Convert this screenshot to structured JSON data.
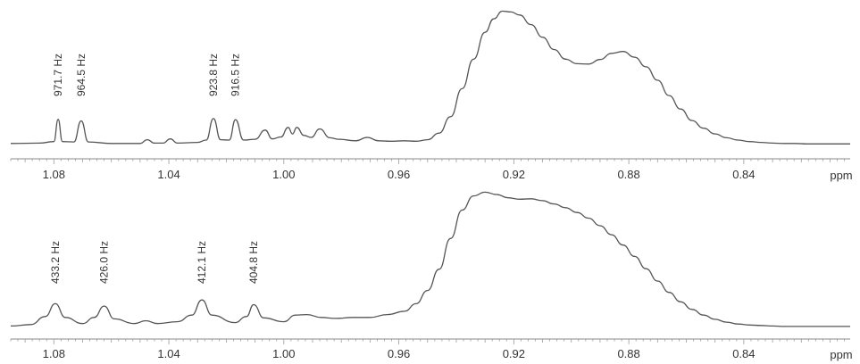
{
  "chart_data": [
    {
      "type": "line",
      "name": "upper-spectrum",
      "xlabel": "ppm",
      "xlim": [
        1.095,
        0.803
      ],
      "ticks": [
        "1.08",
        "1.04",
        "1.00",
        "0.96",
        "0.92",
        "0.88",
        "0.84"
      ],
      "tick_values": [
        1.08,
        1.04,
        1.0,
        0.96,
        0.92,
        0.88,
        0.84
      ],
      "grid": false,
      "peak_labels": [
        {
          "text": "971.7 Hz",
          "x": 1.0785
        },
        {
          "text": "964.5 Hz",
          "x": 1.0705
        },
        {
          "text": "923.8 Hz",
          "x": 1.0245
        },
        {
          "text": "916.5 Hz",
          "x": 1.0168
        }
      ],
      "x": [
        1.095,
        1.085,
        1.08,
        1.0785,
        1.077,
        1.073,
        1.0705,
        1.068,
        1.06,
        1.05,
        1.0475,
        1.045,
        1.042,
        1.0395,
        1.037,
        1.03,
        1.027,
        1.0245,
        1.022,
        1.019,
        1.0168,
        1.014,
        1.01,
        1.0065,
        1.004,
        1.001,
        0.9985,
        0.997,
        0.9955,
        0.993,
        0.9905,
        0.9875,
        0.984,
        0.981,
        0.975,
        0.971,
        0.967,
        0.963,
        0.958,
        0.954,
        0.95,
        0.946,
        0.942,
        0.938,
        0.934,
        0.93,
        0.927,
        0.924,
        0.921,
        0.918,
        0.914,
        0.91,
        0.906,
        0.902,
        0.898,
        0.894,
        0.89,
        0.886,
        0.882,
        0.878,
        0.874,
        0.87,
        0.866,
        0.862,
        0.858,
        0.854,
        0.85,
        0.846,
        0.842,
        0.838,
        0.834,
        0.83,
        0.826,
        0.822,
        0.818,
        0.814,
        0.81,
        0.806,
        0.803
      ],
      "y": [
        0.5,
        0.6,
        1.0,
        6.8,
        1.0,
        0.9,
        6.4,
        0.9,
        0.5,
        0.5,
        1.5,
        0.6,
        0.6,
        1.7,
        0.6,
        0.8,
        1.4,
        7.0,
        1.5,
        1.4,
        6.7,
        1.4,
        1.6,
        4.0,
        1.7,
        2.2,
        4.7,
        3.0,
        4.7,
        2.6,
        2.1,
        4.3,
        2.0,
        1.6,
        1.2,
        2.1,
        1.2,
        1.1,
        1.2,
        1.1,
        1.5,
        3.2,
        7.5,
        14.8,
        22.5,
        29.5,
        33.0,
        35.0,
        34.8,
        34.0,
        31.5,
        28.2,
        25.0,
        22.5,
        21.3,
        21.2,
        22.4,
        24.0,
        24.5,
        23.0,
        20.5,
        17.0,
        13.0,
        9.5,
        6.5,
        4.5,
        3.0,
        2.0,
        1.4,
        1.0,
        0.8,
        0.6,
        0.5,
        0.5,
        0.4,
        0.4,
        0.4,
        0.4,
        0.4
      ]
    },
    {
      "type": "line",
      "name": "lower-spectrum",
      "xlabel": "ppm",
      "xlim": [
        1.095,
        0.803
      ],
      "ticks": [
        "1.08",
        "1.04",
        "1.00",
        "0.96",
        "0.92",
        "0.88",
        "0.84"
      ],
      "tick_values": [
        1.08,
        1.04,
        1.0,
        0.96,
        0.92,
        0.88,
        0.84
      ],
      "grid": false,
      "peak_labels": [
        {
          "text": "433.2 Hz",
          "x": 1.0795
        },
        {
          "text": "426.0 Hz",
          "x": 1.0625
        },
        {
          "text": "412.1 Hz",
          "x": 1.0285
        },
        {
          "text": "404.8 Hz",
          "x": 1.0105
        }
      ],
      "x": [
        1.095,
        1.088,
        1.083,
        1.0795,
        1.076,
        1.07,
        1.066,
        1.0625,
        1.059,
        1.052,
        1.048,
        1.044,
        1.037,
        1.032,
        1.0285,
        1.025,
        1.017,
        1.013,
        1.0105,
        1.007,
        1.0,
        0.996,
        0.992,
        0.987,
        0.982,
        0.976,
        0.97,
        0.964,
        0.958,
        0.954,
        0.95,
        0.946,
        0.942,
        0.938,
        0.934,
        0.93,
        0.926,
        0.922,
        0.918,
        0.914,
        0.91,
        0.906,
        0.902,
        0.898,
        0.894,
        0.89,
        0.886,
        0.882,
        0.878,
        0.874,
        0.87,
        0.866,
        0.862,
        0.858,
        0.854,
        0.85,
        0.846,
        0.842,
        0.838,
        0.834,
        0.83,
        0.826,
        0.822,
        0.818,
        0.814,
        0.81,
        0.806,
        0.803
      ],
      "y": [
        0.5,
        0.8,
        2.5,
        5.2,
        2.3,
        1.0,
        2.3,
        4.7,
        2.0,
        1.0,
        1.6,
        1.0,
        1.4,
        2.8,
        6.0,
        2.8,
        1.2,
        2.5,
        5.0,
        2.2,
        1.4,
        2.8,
        2.9,
        2.3,
        2.1,
        2.3,
        2.3,
        2.9,
        3.6,
        5.2,
        8.0,
        12.5,
        19.0,
        25.0,
        28.0,
        28.8,
        28.3,
        27.6,
        27.3,
        27.4,
        27.0,
        26.3,
        25.5,
        24.5,
        23.3,
        21.7,
        19.8,
        17.6,
        15.2,
        12.6,
        10.0,
        7.6,
        5.6,
        4.0,
        2.8,
        1.9,
        1.3,
        0.9,
        0.7,
        0.6,
        0.5,
        0.4,
        0.4,
        0.4,
        0.4,
        0.4,
        0.4,
        0.4
      ]
    }
  ]
}
